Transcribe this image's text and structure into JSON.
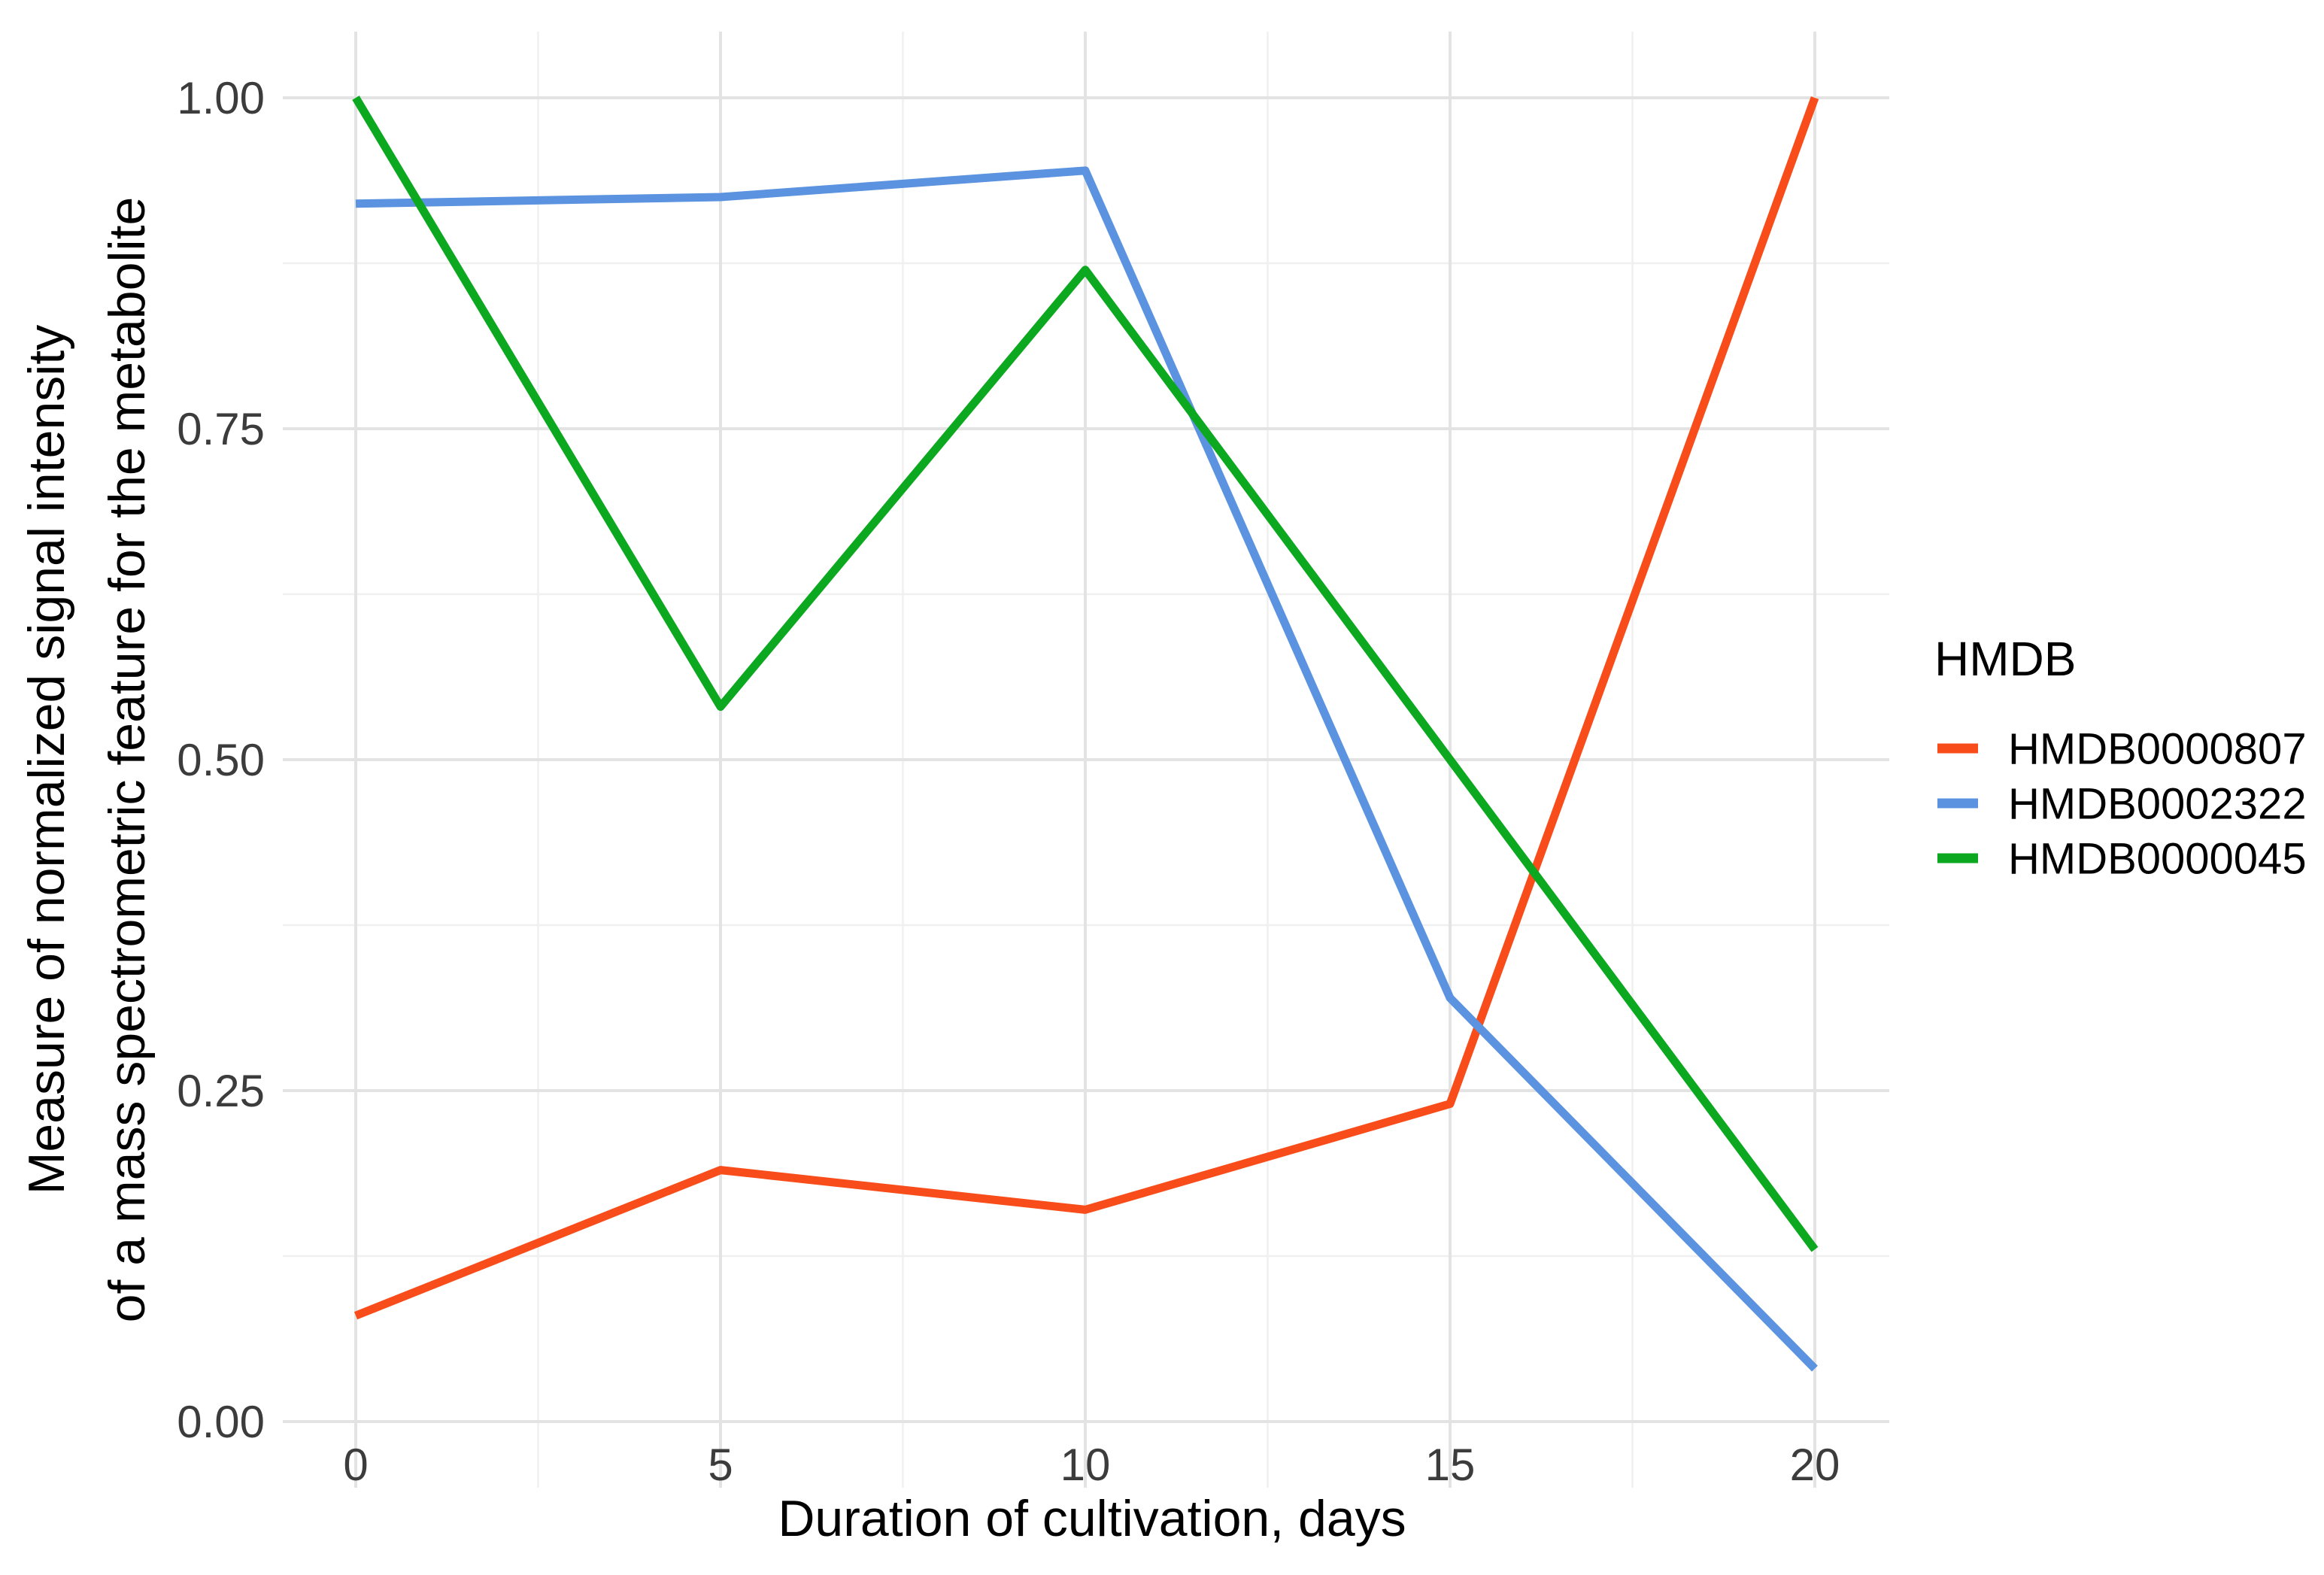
{
  "chart_data": {
    "type": "line",
    "title": "",
    "xlabel": "Duration of cultivation, days",
    "ylabel": "Measure of normalized signal intensity of a mass spectrometric feature for the metabolite",
    "ylabel_lines": [
      "Measure of normalized signal intensity",
      "of a mass spectrometric feature for the metabolite"
    ],
    "x": [
      0,
      5,
      10,
      15,
      20
    ],
    "xticks": [
      "0",
      "5",
      "10",
      "15",
      "20"
    ],
    "yticks": [
      "0.00",
      "0.25",
      "0.50",
      "0.75",
      "1.00"
    ],
    "xlim": [
      0,
      20
    ],
    "ylim": [
      0.0,
      1.0
    ],
    "grid": "major and minor gridlines, light gray on white panel",
    "legend_title": "HMDB",
    "legend_position": "right",
    "series": [
      {
        "name": "HMDB0000807",
        "color": "#F84D1A",
        "values": [
          0.08,
          0.19,
          0.16,
          0.24,
          1.0
        ]
      },
      {
        "name": "HMDB0002322",
        "color": "#5B93E0",
        "values": [
          0.92,
          0.925,
          0.945,
          0.32,
          0.04
        ]
      },
      {
        "name": "HMDB0000045",
        "color": "#0CA81F",
        "values": [
          1.0,
          0.54,
          0.87,
          0.5,
          0.13
        ]
      }
    ],
    "colors": {
      "grid_major": "#E3E3E3",
      "grid_minor": "#F0F0F0",
      "tick_text": "#3c3c3c",
      "title_text": "#000000",
      "background": "#ffffff"
    }
  }
}
